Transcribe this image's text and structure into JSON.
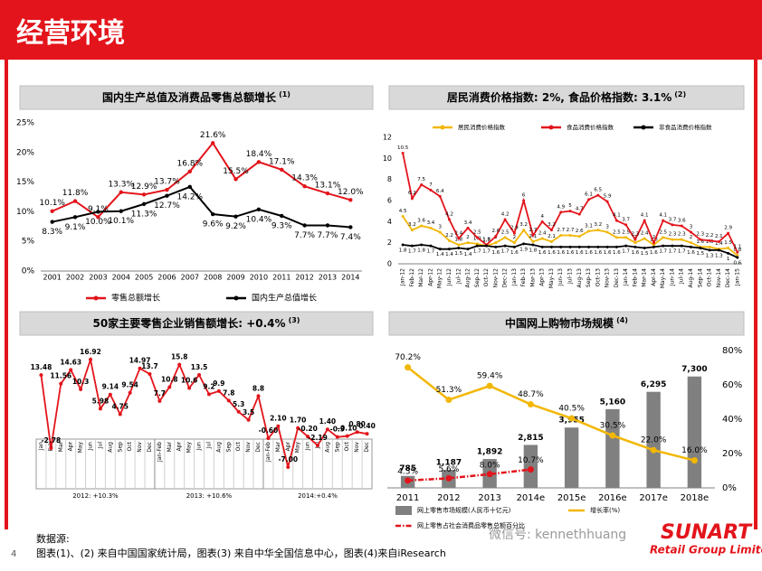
{
  "header": {
    "title": "经营环境"
  },
  "chart_data": [
    {
      "type": "line",
      "title": "国内生产总值及消费品零售总额增长",
      "title_ref": "(1)",
      "categories": [
        "2001",
        "2002",
        "2003",
        "2004",
        "2005",
        "2006",
        "2007",
        "2008",
        "2009",
        "2010",
        "2011",
        "2012",
        "2013",
        "2014"
      ],
      "ylim": [
        0,
        25
      ],
      "yticks": [
        {
          "value": 0,
          "label": "0%"
        },
        {
          "value": 5,
          "label": "5%"
        },
        {
          "value": 10,
          "label": "10%"
        },
        {
          "value": 15,
          "label": "15%"
        },
        {
          "value": 20,
          "label": "20%"
        },
        {
          "value": 25,
          "label": "25%"
        }
      ],
      "series": [
        {
          "name": "零售总额增长",
          "color": "#e3141b",
          "values": [
            10.1,
            11.8,
            9.1,
            13.3,
            12.9,
            13.7,
            16.8,
            21.6,
            15.5,
            18.4,
            17.1,
            14.3,
            13.1,
            12.0
          ],
          "value_labels": [
            "10.1%",
            "11.8%",
            "9.1%",
            "13.3%",
            "12.9%",
            "13.7%",
            "16.8%",
            "21.6%",
            "15.5%",
            "18.4%",
            "17.1%",
            "14.3%",
            "13.1%",
            "12.0%"
          ]
        },
        {
          "name": "国内生产总值增长",
          "color": "#000000",
          "values": [
            8.3,
            9.1,
            10.0,
            10.1,
            11.3,
            12.7,
            14.2,
            9.6,
            9.2,
            10.4,
            9.3,
            7.7,
            7.7,
            7.4
          ],
          "value_labels": [
            "8.3%",
            "9.1%",
            "10.0%",
            "10.1%",
            "11.3%",
            "12.7%",
            "14.2%",
            "9.6%",
            "9.2%",
            "10.4%",
            "9.3%",
            "7.7%",
            "7.7%",
            "7.4%"
          ]
        }
      ]
    },
    {
      "type": "line",
      "title": "居民消费价格指数: 2%, 食品价格指数: 3.1%",
      "title_ref": "(2)",
      "categories": [
        "Jan-12",
        "Feb-12",
        "Mar-12",
        "Apr-12",
        "May-12",
        "Jun-12",
        "Jul-12",
        "Aug-12",
        "Sep-12",
        "Oct-12",
        "Nov-12",
        "Dec-12",
        "Jan-13",
        "Feb-13",
        "Mar-13",
        "Apr-13",
        "May-13",
        "Jun-13",
        "Jul-13",
        "Aug-13",
        "Sep-13",
        "Oct-13",
        "Nov-13",
        "Dec-13",
        "Jan-14",
        "Feb-14",
        "Mar-14",
        "Apr-14",
        "May-14",
        "Jun-14",
        "Jul-14",
        "Aug-14",
        "Sep-14",
        "Oct-14",
        "Nov-14",
        "Dec-14",
        "Jan-15"
      ],
      "ylim": [
        0,
        12
      ],
      "yticks": [
        0,
        2,
        4,
        6,
        8,
        10,
        12
      ],
      "series": [
        {
          "name": "居民消费价格指数",
          "color": "#f2b705",
          "values": [
            4.5,
            3.2,
            3.6,
            3.4,
            3.0,
            2.2,
            1.8,
            2.0,
            1.9,
            1.7,
            2.0,
            2.5,
            2.0,
            3.2,
            2.1,
            2.4,
            2.1,
            2.7,
            2.7,
            2.6,
            3.1,
            3.2,
            3.0,
            2.5,
            2.5,
            2.0,
            2.4,
            1.8,
            2.5,
            2.3,
            2.3,
            2.0,
            1.6,
            1.6,
            1.4,
            1.5,
            0.8
          ]
        },
        {
          "name": "食品消费价格指数",
          "color": "#e3141b",
          "values": [
            10.5,
            6.2,
            7.5,
            7.0,
            6.4,
            4.2,
            2.4,
            3.4,
            2.5,
            1.8,
            2.6,
            4.2,
            2.9,
            6.0,
            2.7,
            4.0,
            3.2,
            4.9,
            5.0,
            4.7,
            6.1,
            6.5,
            5.9,
            4.1,
            3.7,
            2.3,
            4.1,
            2.0,
            4.1,
            3.7,
            3.6,
            3.0,
            2.3,
            2.2,
            2.1,
            2.9,
            1.1
          ]
        },
        {
          "name": "非食品消费价格指数",
          "color": "#000000",
          "values": [
            1.8,
            1.7,
            1.8,
            1.7,
            1.4,
            1.4,
            1.5,
            1.4,
            1.7,
            1.7,
            1.6,
            1.7,
            1.6,
            1.9,
            1.8,
            1.6,
            1.6,
            1.6,
            1.6,
            1.6,
            1.6,
            1.6,
            1.6,
            1.6,
            1.7,
            1.6,
            1.5,
            1.6,
            1.7,
            1.7,
            1.7,
            1.6,
            1.5,
            1.3,
            1.3,
            1.0,
            0.6
          ]
        }
      ]
    },
    {
      "type": "line",
      "title": "50家主要零售企业销售额增长: +0.4%",
      "title_ref": "(3)",
      "color": "#e3141b",
      "groups": [
        {
          "label": "2012: +10.3%",
          "categories": [
            "Jan",
            "Feb",
            "Mar",
            "Apr",
            "May",
            "Jun",
            "Jul",
            "Aug",
            "Sep",
            "Oct",
            "Nov",
            "Dec"
          ],
          "values": [
            13.48,
            -2.78,
            11.56,
            14.63,
            10.3,
            16.92,
            5.98,
            9.14,
            4.75,
            9.54,
            14.97,
            13.7
          ]
        },
        {
          "label": "2013: +10.6%",
          "categories": [
            "Jan-Feb",
            "Mar",
            "Apr",
            "May",
            "Jun",
            "Jul",
            "Aug",
            "Sep",
            "Oct",
            "Nov",
            "Dec"
          ],
          "values": [
            7.7,
            10.8,
            15.8,
            10.6,
            13.5,
            9.2,
            9.9,
            7.8,
            5.3,
            3.5,
            8.8
          ]
        },
        {
          "label": "2014:+0.4%",
          "categories": [
            "Jan-Feb",
            "Mar",
            "Apr",
            "May",
            "Jun",
            "Jul",
            "Aug",
            "Sep",
            "Oct",
            "Nov",
            "Dec"
          ],
          "values": [
            -0.6,
            2.1,
            -7.0,
            1.7,
            -0.2,
            -2.19,
            1.4,
            -0.3,
            -0.1,
            0.8,
            0.4
          ],
          "value_labels": [
            "-0.60",
            "2.10",
            "-7.00",
            "1.70",
            "-0.20",
            "-2.19",
            "1.40",
            "-0.3",
            "-0.10",
            "0.80",
            "0.40"
          ]
        }
      ]
    },
    {
      "type": "bar",
      "title": "中国网上购物市场规模",
      "title_ref": "(4)",
      "categories": [
        "2011",
        "2012",
        "2013",
        "2014e",
        "2015e",
        "2016e",
        "2017e",
        "2018e"
      ],
      "ylim": [
        0,
        9000
      ],
      "y2lim": [
        0,
        80
      ],
      "y2ticks": [
        {
          "value": 0,
          "label": "0%"
        },
        {
          "value": 20,
          "label": "20%"
        },
        {
          "value": 40,
          "label": "40%"
        },
        {
          "value": 60,
          "label": "60%"
        },
        {
          "value": 80,
          "label": "80%"
        }
      ],
      "series": [
        {
          "name": "网上零售市场规模(人民币十亿元)",
          "type": "bar",
          "color": "#808080",
          "values": [
            785,
            1187,
            1892,
            2815,
            3955,
            5160,
            6295,
            7300
          ],
          "value_labels": [
            "785",
            "1,187",
            "1,892",
            "2,815",
            "3,955",
            "5,160",
            "6,295",
            "7,300"
          ]
        },
        {
          "name": "增长率(%)",
          "type": "line",
          "axis": "y2",
          "color": "#f2b705",
          "values": [
            70.2,
            51.3,
            59.4,
            48.7,
            40.5,
            30.5,
            22.0,
            16.0
          ],
          "value_labels": [
            "70.2%",
            "51.3%",
            "59.4%",
            "48.7%",
            "40.5%",
            "30.5%",
            "22.0%",
            "16.0%"
          ]
        },
        {
          "name": "网上零售占社会消费品零售总额百分比",
          "type": "line",
          "axis": "y2",
          "color": "#e3141b",
          "line_style": "dash-dot",
          "values": [
            4.3,
            5.6,
            8.0,
            10.7,
            null,
            null,
            null,
            null
          ],
          "value_labels": [
            "4.3%",
            "5.6%",
            "8.0%",
            "10.7%",
            null,
            null,
            null,
            null
          ]
        }
      ]
    }
  ],
  "footer": {
    "source_label": "数据源:",
    "source_text": "图表(1)、(2) 来自中国国家统计局，图表(3) 来自中华全国信息中心，图表(4)来自iResearch",
    "page": 4
  },
  "logo": {
    "name": "SUNART",
    "subtitle": "Retail Group Limited"
  },
  "watermark": "微信号: kennethhuang"
}
